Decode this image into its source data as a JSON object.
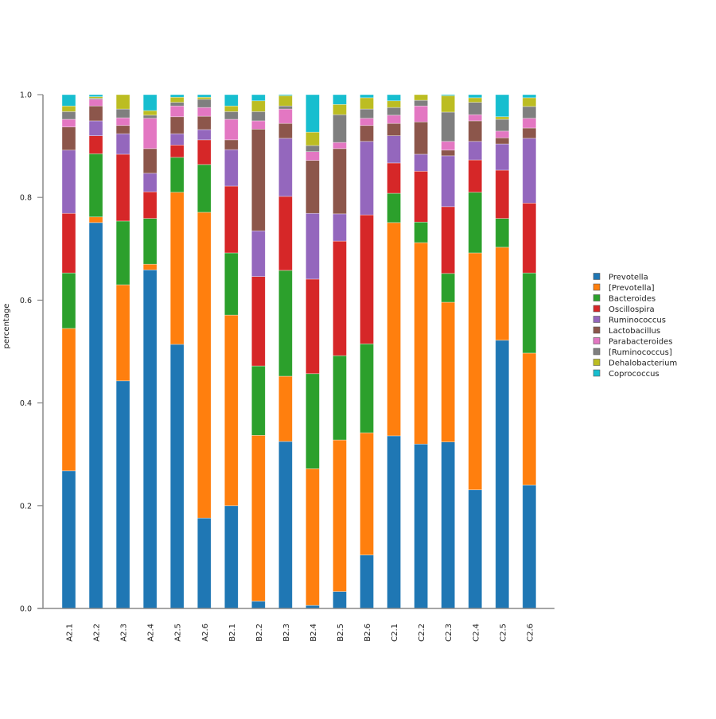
{
  "chart_data": {
    "type": "bar",
    "stacked": true,
    "title": "",
    "xlabel": "",
    "ylabel": "percentage",
    "ylim": [
      0,
      1
    ],
    "yticks": [
      "0.0",
      "0.2",
      "0.4",
      "0.6",
      "0.8",
      "1.0"
    ],
    "grid": false,
    "legend_position": "right",
    "categories": [
      "A2.1",
      "A2.2",
      "A2.3",
      "A2.4",
      "A2.5",
      "A2.6",
      "B2.1",
      "B2.2",
      "B2.3",
      "B2.4",
      "B2.5",
      "B2.6",
      "C2.1",
      "C2.2",
      "C2.3",
      "C2.4",
      "C2.5",
      "C2.6"
    ],
    "series": [
      {
        "name": "Prevotella",
        "color": "#1f77b4",
        "values": [
          0.268,
          0.751,
          0.443,
          0.659,
          0.514,
          0.176,
          0.2,
          0.014,
          0.325,
          0.006,
          0.033,
          0.104,
          0.336,
          0.32,
          0.324,
          0.231,
          0.522,
          0.24
        ]
      },
      {
        "name": "[Prevotella]",
        "color": "#ff7f0e",
        "values": [
          0.277,
          0.011,
          0.187,
          0.011,
          0.296,
          0.595,
          0.371,
          0.323,
          0.127,
          0.266,
          0.295,
          0.238,
          0.415,
          0.392,
          0.272,
          0.461,
          0.181,
          0.257
        ]
      },
      {
        "name": "Bacteroides",
        "color": "#2ca02c",
        "values": [
          0.108,
          0.123,
          0.124,
          0.089,
          0.068,
          0.093,
          0.121,
          0.135,
          0.206,
          0.185,
          0.164,
          0.173,
          0.057,
          0.04,
          0.056,
          0.118,
          0.056,
          0.156
        ]
      },
      {
        "name": "Oscillospira",
        "color": "#d62728",
        "values": [
          0.116,
          0.035,
          0.13,
          0.052,
          0.024,
          0.048,
          0.13,
          0.174,
          0.144,
          0.184,
          0.223,
          0.251,
          0.059,
          0.099,
          0.13,
          0.063,
          0.094,
          0.136
        ]
      },
      {
        "name": "Ruminococcus",
        "color": "#9467bd",
        "values": [
          0.123,
          0.029,
          0.04,
          0.036,
          0.022,
          0.02,
          0.071,
          0.089,
          0.113,
          0.128,
          0.053,
          0.143,
          0.053,
          0.033,
          0.099,
          0.036,
          0.051,
          0.126
        ]
      },
      {
        "name": "Lactobacillus",
        "color": "#8c564b",
        "values": [
          0.045,
          0.029,
          0.016,
          0.048,
          0.033,
          0.026,
          0.019,
          0.198,
          0.029,
          0.103,
          0.127,
          0.031,
          0.024,
          0.063,
          0.011,
          0.04,
          0.012,
          0.02
        ]
      },
      {
        "name": "Parabacteroides",
        "color": "#e377c2",
        "values": [
          0.015,
          0.013,
          0.015,
          0.059,
          0.021,
          0.017,
          0.04,
          0.016,
          0.028,
          0.017,
          0.012,
          0.014,
          0.016,
          0.031,
          0.017,
          0.012,
          0.013,
          0.019
        ]
      },
      {
        "name": "[Ruminococcus]",
        "color": "#7f7f7f",
        "values": [
          0.015,
          0.002,
          0.017,
          0.006,
          0.007,
          0.016,
          0.015,
          0.018,
          0.006,
          0.012,
          0.054,
          0.018,
          0.015,
          0.011,
          0.057,
          0.024,
          0.023,
          0.023
        ]
      },
      {
        "name": "Dehalobacterium",
        "color": "#bcbd22",
        "values": [
          0.011,
          0.003,
          0.028,
          0.009,
          0.01,
          0.004,
          0.011,
          0.021,
          0.02,
          0.026,
          0.02,
          0.022,
          0.013,
          0.011,
          0.032,
          0.009,
          0.005,
          0.017
        ]
      },
      {
        "name": "Coprococcus",
        "color": "#17becf",
        "values": [
          0.022,
          0.004,
          0.0,
          0.031,
          0.005,
          0.005,
          0.022,
          0.012,
          0.002,
          0.073,
          0.019,
          0.006,
          0.012,
          0.0,
          0.002,
          0.006,
          0.043,
          0.006
        ]
      }
    ]
  }
}
